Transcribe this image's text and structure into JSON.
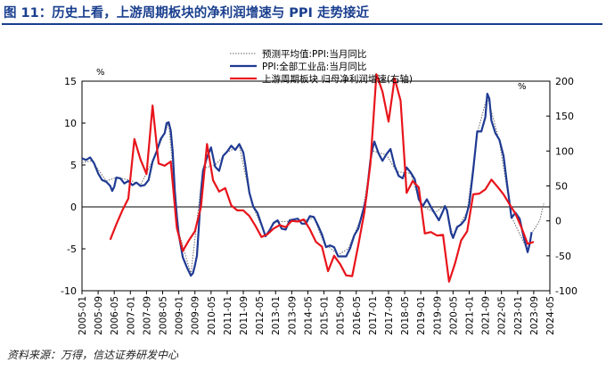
{
  "figure_title": "图 11：历史上看，上游周期板块的净利润增速与 PPI 走势接近",
  "source": "资料来源：万得，信达证券研发中心",
  "colors": {
    "ppi": "#1f3a93",
    "profit": "#e8141b",
    "forecast": "#666666",
    "title": "#1a3f8f"
  },
  "chart_data": {
    "type": "line",
    "title": "历史上看，上游周期板块的净利润增速与 PPI 走势接近",
    "y_left": {
      "label": "%",
      "range": [
        -10,
        15
      ],
      "ticks": [
        15,
        10,
        5,
        0,
        -5,
        -10
      ]
    },
    "y_right": {
      "label": "%",
      "range": [
        -100,
        200
      ],
      "ticks": [
        200,
        150,
        100,
        50,
        0,
        -50,
        -100
      ]
    },
    "x_ticks": [
      "2005-01",
      "2005-09",
      "2006-05",
      "2007-01",
      "2007-09",
      "2008-05",
      "2009-01",
      "2009-09",
      "2010-05",
      "2011-01",
      "2011-09",
      "2012-05",
      "2013-01",
      "2013-09",
      "2014-05",
      "2015-01",
      "2015-09",
      "2016-05",
      "2017-01",
      "2017-09",
      "2018-05",
      "2019-01",
      "2019-09",
      "2020-05",
      "2021-01",
      "2021-09",
      "2022-05",
      "2023-01",
      "2023-09",
      "2024-05"
    ],
    "x_range": [
      "2005-01",
      "2024-05"
    ],
    "legend": [
      "预测平均值:PPI:当月同比",
      "PPI:全部工业品:当月同比",
      "上游周期板块 归母净利润增速(右轴)"
    ],
    "legend_position": "top-center",
    "series": [
      {
        "name": "PPI:全部工业品:当月同比",
        "axis": "left",
        "points": [
          [
            "2005-01",
            5.8
          ],
          [
            "2005-03",
            5.6
          ],
          [
            "2005-05",
            5.9
          ],
          [
            "2005-07",
            5.2
          ],
          [
            "2005-09",
            4.0
          ],
          [
            "2005-11",
            3.2
          ],
          [
            "2006-01",
            3.0
          ],
          [
            "2006-03",
            2.5
          ],
          [
            "2006-04",
            1.9
          ],
          [
            "2006-05",
            2.4
          ],
          [
            "2006-06",
            3.5
          ],
          [
            "2006-08",
            3.4
          ],
          [
            "2006-10",
            2.8
          ],
          [
            "2006-12",
            3.1
          ],
          [
            "2007-02",
            2.6
          ],
          [
            "2007-04",
            2.9
          ],
          [
            "2007-06",
            2.5
          ],
          [
            "2007-08",
            2.6
          ],
          [
            "2007-10",
            3.2
          ],
          [
            "2007-12",
            5.4
          ],
          [
            "2008-02",
            6.6
          ],
          [
            "2008-04",
            8.1
          ],
          [
            "2008-06",
            8.8
          ],
          [
            "2008-07",
            10.0
          ],
          [
            "2008-08",
            10.1
          ],
          [
            "2008-09",
            9.1
          ],
          [
            "2008-10",
            6.6
          ],
          [
            "2008-11",
            2.0
          ],
          [
            "2008-12",
            -1.1
          ],
          [
            "2009-01",
            -3.3
          ],
          [
            "2009-03",
            -6.0
          ],
          [
            "2009-05",
            -7.2
          ],
          [
            "2009-07",
            -8.2
          ],
          [
            "2009-08",
            -7.9
          ],
          [
            "2009-09",
            -7.0
          ],
          [
            "2009-10",
            -5.8
          ],
          [
            "2009-11",
            -2.1
          ],
          [
            "2009-12",
            1.7
          ],
          [
            "2010-01",
            4.3
          ],
          [
            "2010-03",
            5.9
          ],
          [
            "2010-05",
            7.1
          ],
          [
            "2010-07",
            4.8
          ],
          [
            "2010-09",
            4.3
          ],
          [
            "2010-11",
            6.1
          ],
          [
            "2011-01",
            6.6
          ],
          [
            "2011-03",
            7.3
          ],
          [
            "2011-05",
            6.8
          ],
          [
            "2011-07",
            7.5
          ],
          [
            "2011-09",
            6.5
          ],
          [
            "2011-10",
            5.0
          ],
          [
            "2011-12",
            1.7
          ],
          [
            "2012-02",
            0.0
          ],
          [
            "2012-04",
            -0.7
          ],
          [
            "2012-06",
            -2.1
          ],
          [
            "2012-08",
            -3.5
          ],
          [
            "2012-10",
            -2.8
          ],
          [
            "2012-12",
            -1.9
          ],
          [
            "2013-02",
            -1.6
          ],
          [
            "2013-04",
            -2.6
          ],
          [
            "2013-06",
            -2.7
          ],
          [
            "2013-08",
            -1.6
          ],
          [
            "2013-10",
            -1.5
          ],
          [
            "2013-12",
            -1.4
          ],
          [
            "2014-02",
            -2.0
          ],
          [
            "2014-04",
            -2.0
          ],
          [
            "2014-06",
            -1.1
          ],
          [
            "2014-08",
            -1.2
          ],
          [
            "2014-10",
            -2.2
          ],
          [
            "2014-12",
            -3.3
          ],
          [
            "2015-02",
            -4.8
          ],
          [
            "2015-04",
            -4.6
          ],
          [
            "2015-06",
            -4.8
          ],
          [
            "2015-08",
            -5.9
          ],
          [
            "2015-10",
            -5.9
          ],
          [
            "2015-12",
            -5.9
          ],
          [
            "2016-02",
            -4.9
          ],
          [
            "2016-04",
            -3.4
          ],
          [
            "2016-06",
            -2.6
          ],
          [
            "2016-08",
            -0.8
          ],
          [
            "2016-09",
            0.1
          ],
          [
            "2016-10",
            1.2
          ],
          [
            "2016-11",
            3.3
          ],
          [
            "2016-12",
            5.5
          ],
          [
            "2017-01",
            6.9
          ],
          [
            "2017-02",
            7.8
          ],
          [
            "2017-04",
            6.4
          ],
          [
            "2017-06",
            5.5
          ],
          [
            "2017-08",
            6.3
          ],
          [
            "2017-10",
            6.9
          ],
          [
            "2017-12",
            4.9
          ],
          [
            "2018-02",
            3.7
          ],
          [
            "2018-04",
            3.4
          ],
          [
            "2018-06",
            4.7
          ],
          [
            "2018-08",
            4.1
          ],
          [
            "2018-10",
            3.3
          ],
          [
            "2018-12",
            0.9
          ],
          [
            "2019-02",
            0.1
          ],
          [
            "2019-04",
            0.9
          ],
          [
            "2019-06",
            0.0
          ],
          [
            "2019-08",
            -0.8
          ],
          [
            "2019-10",
            -1.6
          ],
          [
            "2019-12",
            -0.5
          ],
          [
            "2020-01",
            0.1
          ],
          [
            "2020-02",
            -0.4
          ],
          [
            "2020-04",
            -3.1
          ],
          [
            "2020-05",
            -3.7
          ],
          [
            "2020-07",
            -2.4
          ],
          [
            "2020-09",
            -2.1
          ],
          [
            "2020-11",
            -1.5
          ],
          [
            "2021-01",
            0.3
          ],
          [
            "2021-03",
            4.4
          ],
          [
            "2021-05",
            9.0
          ],
          [
            "2021-07",
            9.0
          ],
          [
            "2021-09",
            10.7
          ],
          [
            "2021-10",
            13.5
          ],
          [
            "2021-11",
            12.9
          ],
          [
            "2021-12",
            10.3
          ],
          [
            "2022-02",
            8.8
          ],
          [
            "2022-04",
            8.0
          ],
          [
            "2022-06",
            6.1
          ],
          [
            "2022-08",
            2.3
          ],
          [
            "2022-10",
            -1.3
          ],
          [
            "2022-12",
            -0.7
          ],
          [
            "2023-02",
            -1.4
          ],
          [
            "2023-04",
            -3.6
          ],
          [
            "2023-06",
            -5.4
          ],
          [
            "2023-07",
            -4.4
          ],
          [
            "2023-08",
            -3.0
          ]
        ]
      },
      {
        "name": "预测平均值:PPI:当月同比",
        "axis": "left",
        "points": [
          [
            "2005-01",
            5.3
          ],
          [
            "2005-06",
            5.5
          ],
          [
            "2006-01",
            3.1
          ],
          [
            "2006-06",
            3.5
          ],
          [
            "2007-01",
            3.2
          ],
          [
            "2007-06",
            2.6
          ],
          [
            "2008-01",
            6.0
          ],
          [
            "2008-08",
            10.0
          ],
          [
            "2009-01",
            -3.0
          ],
          [
            "2009-07",
            -8.0
          ],
          [
            "2010-01",
            4.6
          ],
          [
            "2010-07",
            5.0
          ],
          [
            "2011-01",
            6.5
          ],
          [
            "2011-07",
            7.3
          ],
          [
            "2012-01",
            0.5
          ],
          [
            "2012-08",
            -3.4
          ],
          [
            "2013-01",
            -1.8
          ],
          [
            "2013-08",
            -1.7
          ],
          [
            "2014-01",
            -1.8
          ],
          [
            "2014-08",
            -1.3
          ],
          [
            "2015-01",
            -4.3
          ],
          [
            "2015-08",
            -5.7
          ],
          [
            "2016-01",
            -5.0
          ],
          [
            "2016-08",
            -1.0
          ],
          [
            "2017-01",
            6.7
          ],
          [
            "2017-08",
            6.2
          ],
          [
            "2018-01",
            4.2
          ],
          [
            "2018-08",
            4.0
          ],
          [
            "2019-01",
            0.2
          ],
          [
            "2019-08",
            -0.7
          ],
          [
            "2020-01",
            0.2
          ],
          [
            "2020-05",
            -3.5
          ],
          [
            "2020-12",
            -0.6
          ],
          [
            "2021-05",
            8.8
          ],
          [
            "2021-10",
            13.2
          ],
          [
            "2022-04",
            7.8
          ],
          [
            "2022-10",
            -1.2
          ],
          [
            "2023-06",
            -5.2
          ],
          [
            "2023-08",
            -3.1
          ],
          [
            "2023-10",
            -2.4
          ],
          [
            "2023-12",
            -1.6
          ],
          [
            "2024-02",
            0.4
          ]
        ]
      },
      {
        "name": "上游周期板块 归母净利润增速(右轴)",
        "axis": "right",
        "points": [
          [
            "2006-03",
            -27
          ],
          [
            "2006-06",
            -5
          ],
          [
            "2006-09",
            15
          ],
          [
            "2006-12",
            32
          ],
          [
            "2007-03",
            117
          ],
          [
            "2007-06",
            88
          ],
          [
            "2007-09",
            67
          ],
          [
            "2007-12",
            165
          ],
          [
            "2008-03",
            82
          ],
          [
            "2008-06",
            79
          ],
          [
            "2008-09",
            85
          ],
          [
            "2008-12",
            -10
          ],
          [
            "2009-03",
            -43
          ],
          [
            "2009-06",
            -28
          ],
          [
            "2009-09",
            -15
          ],
          [
            "2009-12",
            20
          ],
          [
            "2010-03",
            110
          ],
          [
            "2010-06",
            58
          ],
          [
            "2010-09",
            42
          ],
          [
            "2010-12",
            47
          ],
          [
            "2011-03",
            22
          ],
          [
            "2011-06",
            15
          ],
          [
            "2011-09",
            15
          ],
          [
            "2011-12",
            7
          ],
          [
            "2012-03",
            -7
          ],
          [
            "2012-06",
            -23
          ],
          [
            "2012-09",
            -19
          ],
          [
            "2012-12",
            -11
          ],
          [
            "2013-03",
            -6
          ],
          [
            "2013-06",
            -9
          ],
          [
            "2013-09",
            0
          ],
          [
            "2013-12",
            -1
          ],
          [
            "2014-03",
            2
          ],
          [
            "2014-06",
            -12
          ],
          [
            "2014-09",
            -30
          ],
          [
            "2014-12",
            -37
          ],
          [
            "2015-03",
            -72
          ],
          [
            "2015-06",
            -50
          ],
          [
            "2015-09",
            -62
          ],
          [
            "2015-12",
            -78
          ],
          [
            "2016-03",
            -79
          ],
          [
            "2016-06",
            -35
          ],
          [
            "2016-09",
            12
          ],
          [
            "2016-12",
            81
          ],
          [
            "2017-03",
            210
          ],
          [
            "2017-06",
            185
          ],
          [
            "2017-09",
            142
          ],
          [
            "2017-12",
            204
          ],
          [
            "2018-03",
            172
          ],
          [
            "2018-06",
            40
          ],
          [
            "2018-09",
            57
          ],
          [
            "2018-12",
            48
          ],
          [
            "2019-03",
            -18
          ],
          [
            "2019-06",
            -16
          ],
          [
            "2019-09",
            -21
          ],
          [
            "2019-12",
            -20
          ],
          [
            "2020-03",
            -87
          ],
          [
            "2020-06",
            -61
          ],
          [
            "2020-09",
            -28
          ],
          [
            "2020-12",
            -15
          ],
          [
            "2021-03",
            38
          ],
          [
            "2021-06",
            39
          ],
          [
            "2021-09",
            45
          ],
          [
            "2021-12",
            59
          ],
          [
            "2022-03",
            49
          ],
          [
            "2022-06",
            38
          ],
          [
            "2022-09",
            24
          ],
          [
            "2022-12",
            10
          ],
          [
            "2023-03",
            -10
          ],
          [
            "2023-06",
            -33
          ],
          [
            "2023-09",
            -30
          ]
        ]
      }
    ]
  }
}
